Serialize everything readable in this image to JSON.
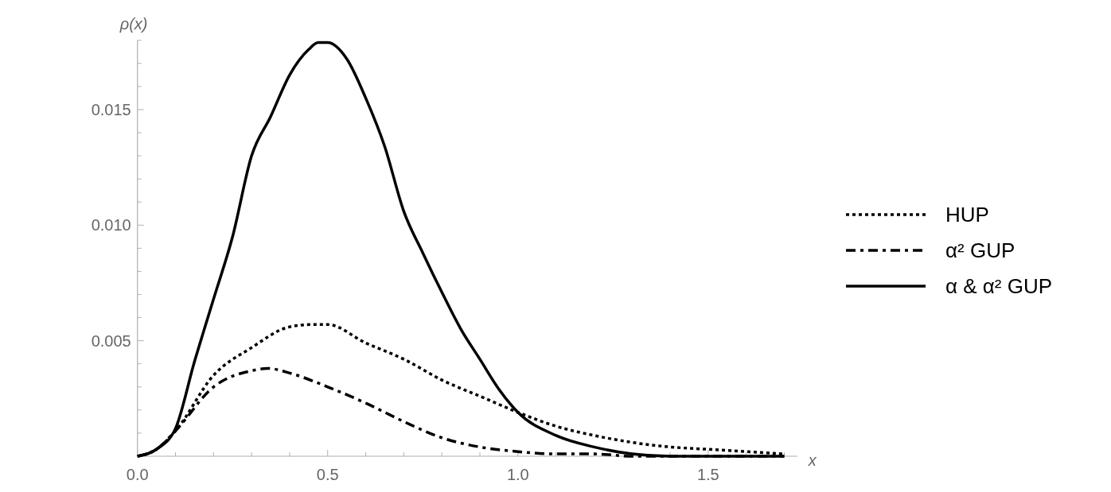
{
  "chart_data": {
    "type": "line",
    "xlabel": "x",
    "ylabel": "ρ(x)",
    "xlim": [
      0,
      1.734
    ],
    "ylim": [
      0,
      0.018
    ],
    "xticks": [
      {
        "value": 0,
        "label": "0.0"
      },
      {
        "value": 0.1,
        "label": null
      },
      {
        "value": 0.2,
        "label": null
      },
      {
        "value": 0.3,
        "label": null
      },
      {
        "value": 0.4,
        "label": null
      },
      0.5,
      {
        "value": 0.6,
        "label": null
      },
      {
        "value": 0.7,
        "label": null
      },
      {
        "value": 0.8,
        "label": null
      },
      {
        "value": 0.9,
        "label": null
      },
      {
        "value": 1.0,
        "label": "1.0"
      },
      {
        "value": 1.1,
        "label": null
      },
      {
        "value": 1.2,
        "label": null
      },
      {
        "value": 1.3,
        "label": null
      },
      {
        "value": 1.4,
        "label": null
      },
      1.5,
      {
        "value": 1.6,
        "label": null
      },
      {
        "value": 1.7,
        "label": null
      }
    ],
    "yticks": [
      {
        "value": 0.001,
        "label": null
      },
      {
        "value": 0.002,
        "label": null
      },
      {
        "value": 0.003,
        "label": null
      },
      {
        "value": 0.004,
        "label": null
      },
      0.005,
      {
        "value": 0.006,
        "label": null
      },
      {
        "value": 0.007,
        "label": null
      },
      {
        "value": 0.008,
        "label": null
      },
      {
        "value": 0.009,
        "label": null
      },
      {
        "value": 0.01,
        "label": "0.010"
      },
      {
        "value": 0.011,
        "label": null
      },
      {
        "value": 0.012,
        "label": null
      },
      {
        "value": 0.013,
        "label": null
      },
      {
        "value": 0.014,
        "label": null
      },
      0.015,
      {
        "value": 0.016,
        "label": null
      },
      {
        "value": 0.017,
        "label": null
      },
      {
        "value": 0.018,
        "label": null
      }
    ],
    "legend": "right",
    "marker": "none",
    "series": [
      {
        "name": "HUP",
        "color": "#000000",
        "line_style": "dotted",
        "x": [
          0,
          0.05,
          0.1,
          0.2,
          0.3,
          0.4,
          0.458,
          0.5,
          0.6,
          0.7,
          0.8,
          0.9,
          1.0,
          1.1,
          1.2,
          1.3,
          1.4,
          1.5,
          1.6,
          1.7
        ],
        "values": [
          0,
          0.0003,
          0.0011,
          0.0035,
          0.0047,
          0.0056,
          0.0057,
          0.0057,
          0.0049,
          0.0042,
          0.0033,
          0.0026,
          0.0019,
          0.0013,
          0.0009,
          0.0006,
          0.0004,
          0.0003,
          0.0002,
          0.0001
        ]
      },
      {
        "name": "α² GUP",
        "color": "#000000",
        "line_style": "dashdot",
        "x": [
          0,
          0.05,
          0.1,
          0.2,
          0.3,
          0.343,
          0.4,
          0.5,
          0.6,
          0.7,
          0.8,
          0.9,
          1.0,
          1.1,
          1.2,
          1.3,
          1.4,
          1.5,
          1.6,
          1.7
        ],
        "values": [
          0,
          0.0003,
          0.0011,
          0.003,
          0.0037,
          0.0038,
          0.0036,
          0.003,
          0.0023,
          0.0015,
          0.0008,
          0.0004,
          0.0002,
          0.0001,
          0.0001,
          0,
          0,
          0,
          0,
          0
        ]
      },
      {
        "name": "α & α² GUP",
        "color": "#000000",
        "line_style": "solid",
        "x": [
          0,
          0.05,
          0.1,
          0.15,
          0.2,
          0.25,
          0.3,
          0.35,
          0.4,
          0.45,
          0.475,
          0.5,
          0.55,
          0.6,
          0.65,
          0.7,
          0.75,
          0.8,
          0.85,
          0.9,
          0.95,
          1.0,
          1.1,
          1.2,
          1.3,
          1.4,
          1.5,
          1.6,
          1.7
        ],
        "values": [
          0,
          0.0003,
          0.0012,
          0.0041,
          0.0068,
          0.0095,
          0.013,
          0.0147,
          0.0165,
          0.0176,
          0.0179,
          0.0179,
          0.0172,
          0.0155,
          0.0134,
          0.0106,
          0.0088,
          0.0071,
          0.0055,
          0.0042,
          0.0029,
          0.0019,
          0.0009,
          0.0004,
          0.0001,
          0,
          0,
          0,
          0
        ]
      }
    ]
  }
}
